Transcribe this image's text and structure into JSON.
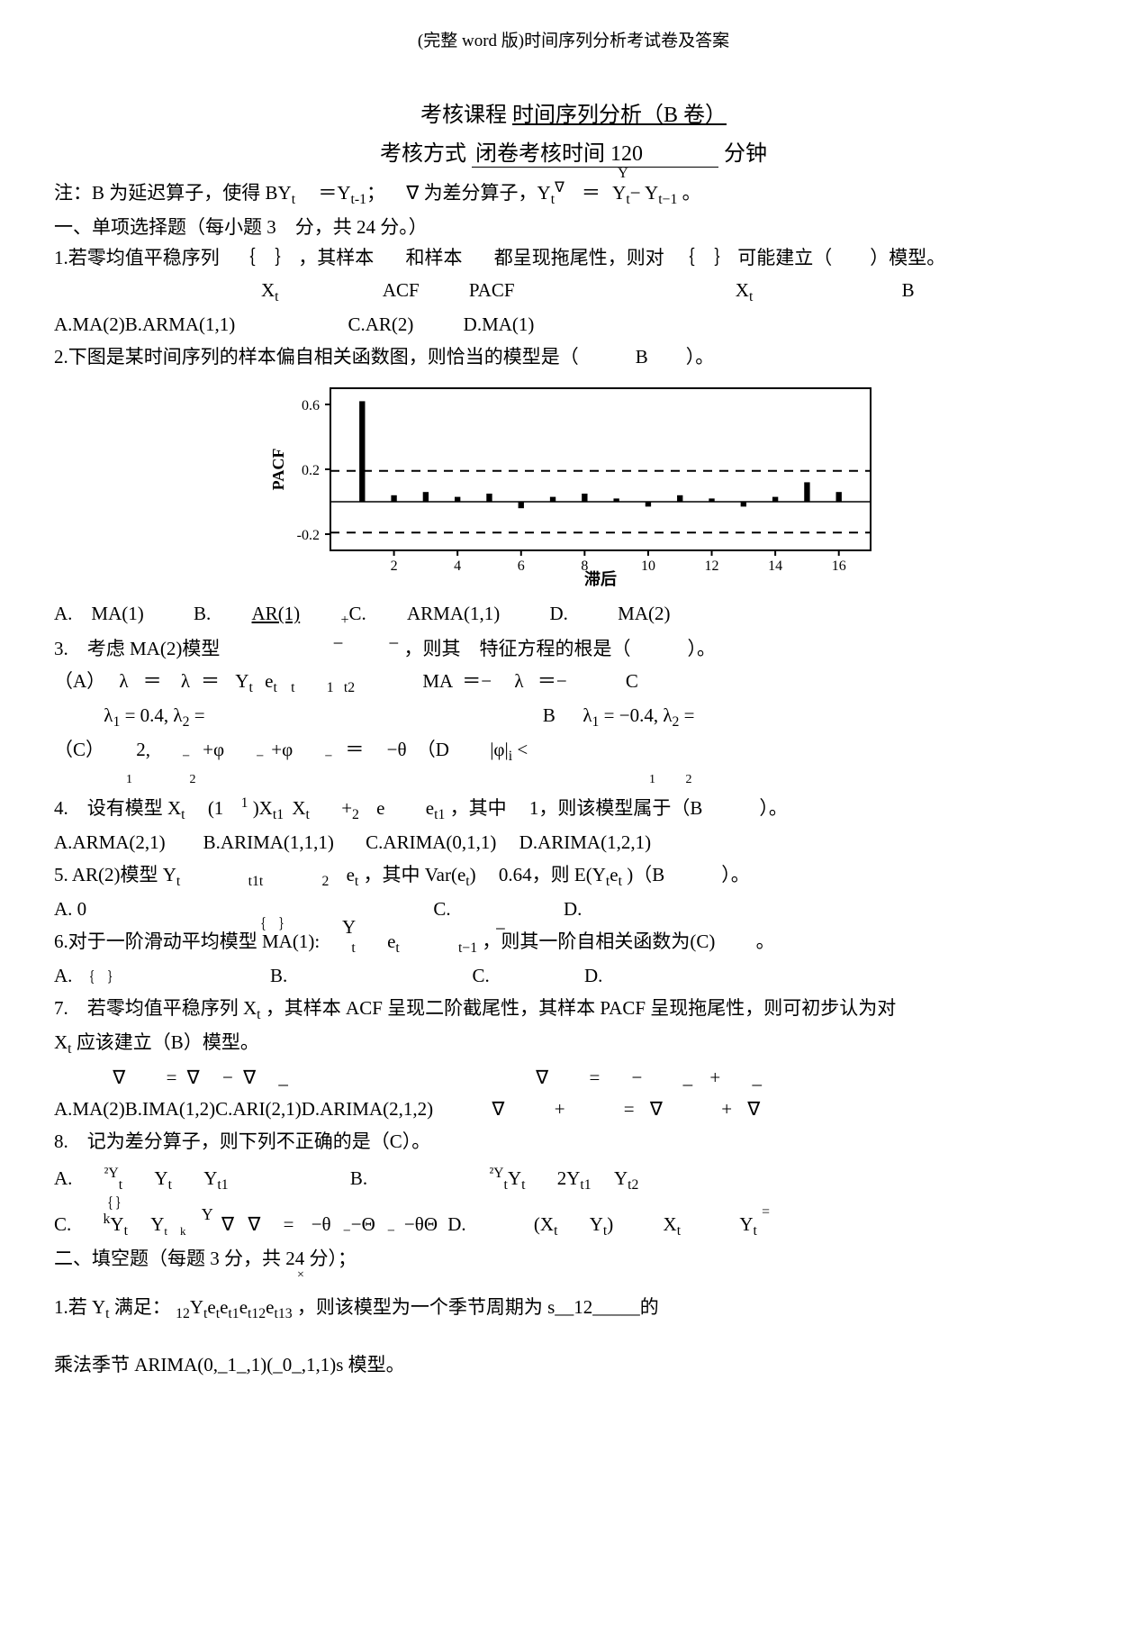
{
  "header_note": "(完整 word 版)时间序列分析考试卷及答案",
  "title": {
    "prefix": "考核课程",
    "name": "时间序列分析（B 卷）"
  },
  "exam_info": {
    "prefix": "考核方式",
    "mode": "闭卷",
    "time_label": "考核时间",
    "time_value": "120",
    "unit": "分钟"
  },
  "note_line": {
    "text_a": "注：B 为延迟算子，使得 BY",
    "sub_a": "t",
    "eq1": "＝",
    "y1": "Y",
    "sub_b": "t-1",
    "sep": "；",
    "nabla": "∇",
    "text_b": " 为差分算子，Y",
    "sub_c": "t",
    "nabla2": "∇",
    "eq2": "＝",
    "y2": "Y",
    "sub_d": "t",
    "minus": "− Y",
    "sub_e": "t−1",
    "tail": " 。"
  },
  "section1": "一、单项选择题（每小题 3　分，共 24  分。）",
  "q1": {
    "line1": "1.若零均值平稳序列",
    "brace1": "｛　｝",
    "mid1": "，其样本",
    "mid2": "和样本",
    "mid3": "都呈现拖尾性，则对",
    "brace2": "｛　｝",
    "tail": "可能建立（　　）模型。",
    "row2_a": "X",
    "row2_a_sub": "t",
    "row2_b": "ACF",
    "row2_c": "PACF",
    "row2_d": "X",
    "row2_d_sub": "t",
    "row2_e": "B",
    "opts": "A.MA(2)B.ARMA(1,1)",
    "optC": "C.AR(2)",
    "optD": "D.MA(1)"
  },
  "q2": {
    "text": "2.下图是某时间序列的样本偏自相关函数图，则恰当的模型是（　　　B　　）。",
    "chart": {
      "type": "bar",
      "xlabel": "滞后",
      "ylabel": "PACF",
      "xlim": [
        0,
        17
      ],
      "ylim": [
        -0.3,
        0.7
      ],
      "yticks": [
        -0.2,
        0.2,
        0.6
      ],
      "xticks": [
        2,
        4,
        6,
        8,
        10,
        12,
        14,
        16
      ],
      "ci_upper": 0.19,
      "ci_lower": -0.19,
      "bar_color": "#000000",
      "background_color": "#ffffff",
      "border_color": "#000000",
      "ci_color": "#000000",
      "bar_width": 0.18,
      "label_fontsize": 18,
      "tick_fontsize": 16,
      "values": [
        {
          "x": 1,
          "y": 0.62
        },
        {
          "x": 2,
          "y": 0.04
        },
        {
          "x": 3,
          "y": 0.06
        },
        {
          "x": 4,
          "y": 0.03
        },
        {
          "x": 5,
          "y": 0.05
        },
        {
          "x": 6,
          "y": -0.04
        },
        {
          "x": 7,
          "y": 0.03
        },
        {
          "x": 8,
          "y": 0.05
        },
        {
          "x": 9,
          "y": 0.02
        },
        {
          "x": 10,
          "y": -0.03
        },
        {
          "x": 11,
          "y": 0.04
        },
        {
          "x": 12,
          "y": 0.02
        },
        {
          "x": 13,
          "y": -0.03
        },
        {
          "x": 14,
          "y": 0.03
        },
        {
          "x": 15,
          "y": 0.12
        },
        {
          "x": 16,
          "y": 0.06
        }
      ]
    },
    "opts": {
      "A": "A.　MA(1)",
      "B": "B.",
      "B2": "AR(1)",
      "C": "C.",
      "C2": "ARMA(1,1)",
      "D": "D.",
      "D2": "MA(2)"
    }
  },
  "q3": {
    "line": "3.　考虑 MA(2)模型",
    "mid": "，则其　特征方程的根是（　　　）。",
    "rowA": "（A）",
    "lam": "λ",
    "eq": "＝",
    "lam2": "λ",
    "eq2": "＝",
    "Yt": "Y",
    "Yt_sub": "t",
    "et": "e",
    "et_sub": "t",
    "t1": "t",
    "one": "1",
    "t2": "t2",
    "MA": "MA",
    "neg": "＝−",
    "lam3": "λ",
    "eq3": "＝−",
    "C": "C",
    "rowC_l1": "λ",
    "rowC_l1v": "1",
    "rowC_eq": "= 0.4,",
    "rowC_l2": "λ",
    "rowC_l2v": "2",
    "rowC_eq2": "=",
    "B": "B",
    "rowB_l1": "λ",
    "rowB_l1v": "1",
    "rowB_eq": "= −0.4,",
    "rowB_l2": "λ",
    "rowB_l2v": "2",
    "rowB_eq2": "=",
    "row3_c": "（C）",
    "two": "2,",
    "phi1": "+φ",
    "phi2": "+φ",
    "eq4": "＝",
    "theta": "−θ",
    "D": "（D",
    "abs": "|φ|",
    "lt": "<",
    "sub1": "1",
    "sub2": "2"
  },
  "q4": {
    "line": "4.　设有模型 X",
    "xt_sub": "t",
    "paren": "(1",
    "p1": "1",
    "xx": ")X",
    "x1": "X",
    "sub11": "t1",
    "t": "t",
    "plus": "+",
    "two": "2",
    "e": "e",
    "e2": "e",
    "sub1": "1",
    "subt1": "t1",
    "one": "1",
    "mid": "，其中",
    "eqone": "1，则该模型属于（B　　　）。",
    "opts": "A.ARMA(2,1)　　B.ARIMA(1,1,1)",
    "optC": "C.ARIMA(0,1,1)",
    "optD": "D.ARIMA(1,2,1)"
  },
  "q5": {
    "line": "5.  AR(2)模型  Y",
    "yt_sub": "t",
    "t1t": "t1t",
    "two": "2",
    "et": "e",
    "et_sub": "t",
    "mid": "，其中 Var(e",
    "etsub2": "t",
    "close": ")",
    "val": "0.64，则 E(Y",
    "yts": "t",
    "ee": "e",
    "ets": "t",
    "end": " )（B　　　）。",
    "optA": "A. 0",
    "optC": "C.",
    "optD": "D."
  },
  "q6": {
    "pre": "6.对于一阶滑动平均模型 MA(1):",
    "brace": "｛　｝",
    "Y": "Y",
    "t": "t",
    "et": "e",
    "et_sub": "t",
    "t1": "t−1",
    "mid": "，则其一阶自相关函数为(C)",
    "dot": "。",
    "optA": "A.",
    "brace2": "｛　｝",
    "optB": "B.",
    "optC": "C.",
    "optD": "D."
  },
  "q7": {
    "line": "7.　若零均值平稳序列 X",
    "sub": "t",
    "mid": "，其样本 ACF 呈现二阶截尾性，其样本 PACF 呈现拖尾性，则可初步认为对",
    "line2": "X",
    "sub2": "t",
    "tail": " 应该建立（B）模型。",
    "sym_row": {
      "n1": "∇",
      "eq": "=",
      "n2": "∇",
      "m": "−",
      "n3": "∇",
      "us": "_",
      "n4": "∇",
      "eq2": "=",
      "m2": "−",
      "p": "+",
      "us2": "_"
    },
    "opts": "A.MA(2)B.IMA(1,2)C.ARI(2,1)D.ARIMA(2,1,2)",
    "sym_row2": {
      "n1": "∇",
      "p": "+",
      "eq": "=",
      "n2": "∇",
      "p2": "+",
      "n3": "∇"
    }
  },
  "q8": {
    "line": "8.　记为差分算子，则下列不正确的是（C）。",
    "rowA": {
      "A": "A.",
      "d2": "²Y",
      "sub": "t",
      "Y1": "Y",
      "s1": "t",
      "Y2": "Y",
      "s2": "t1",
      "B": "B.",
      "d2b": "²Y",
      "sb": "t",
      "Yb": "Y",
      "sb1": "t",
      "two": "2Y",
      "sb2": "t1",
      "Y3": "Y",
      "sb3": "t2"
    },
    "rowC": {
      "C": "C.",
      "brace": "｛ ｝",
      "k": "k",
      "Y": "Y",
      "s": "t",
      "Y2": "Y",
      "s2": "t",
      "nk": "k",
      "nab": "∇",
      "nab2": "∇",
      "eq": "=",
      "t1": "−θ",
      "t2": "−Θ",
      "t3": "−θΘ",
      "D": "D.",
      "Xt": "(X",
      "xs": "t",
      "Yt": "Y",
      "ys": "t",
      "close": ")",
      "X2": "X",
      "xs2": "t",
      "Y2b": "Y",
      "ys2": "t",
      "eq2": "="
    }
  },
  "section2": "二、填空题（每题 3 分，共 24 分）；",
  "x": "×",
  "fill1": {
    "line": "1.若 Y",
    "s": "t",
    "mid": " 满足：",
    "sub12": "12",
    "Y": "Y",
    "ts": "t",
    "e": "e",
    "es": "t",
    "e1": "e",
    "e1s": "t1",
    "e12": "e",
    "e12s": "t12",
    "e13": "e",
    "e13s": "t13",
    "tail": "，则该模型为一个季节周期为 s__12_____的"
  },
  "fill1b": "乘法季节 ARIMA(0,_1_,1)(_0_,1,1)s 模型。"
}
